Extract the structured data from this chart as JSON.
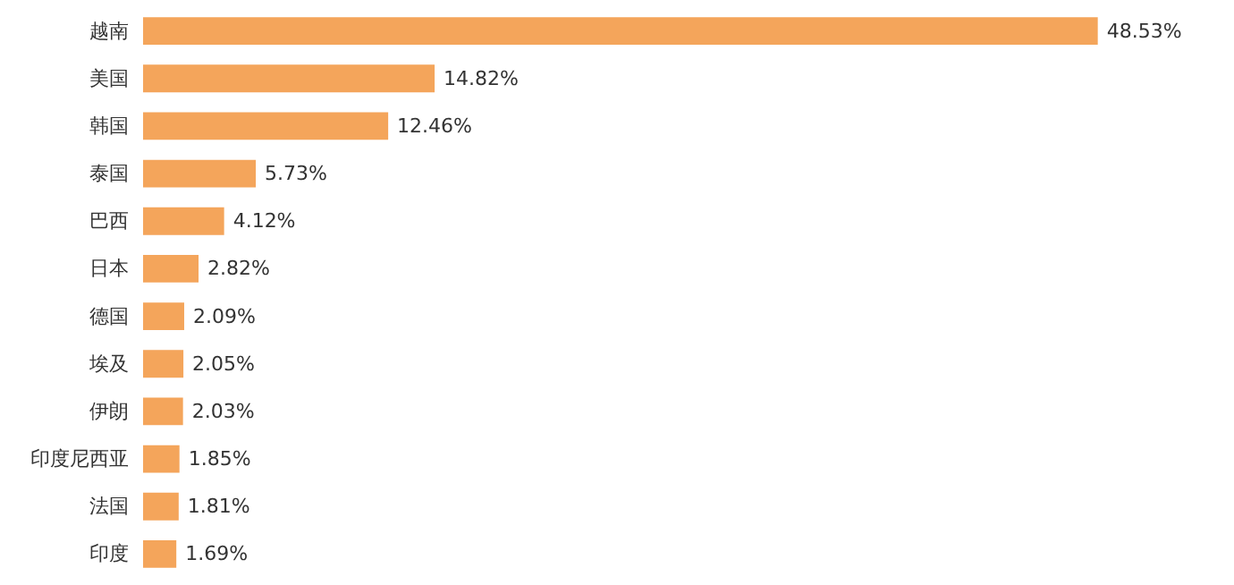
{
  "chart_data": {
    "type": "bar",
    "orientation": "horizontal",
    "categories": [
      "越南",
      "美国",
      "韩国",
      "泰国",
      "巴西",
      "日本",
      "德国",
      "埃及",
      "伊朗",
      "印度尼西亚",
      "法国",
      "印度"
    ],
    "values": [
      48.53,
      14.82,
      12.46,
      5.73,
      4.12,
      2.82,
      2.09,
      2.05,
      2.03,
      1.85,
      1.81,
      1.69
    ],
    "value_labels": [
      "48.53%",
      "14.82%",
      "12.46%",
      "5.73%",
      "4.12%",
      "2.82%",
      "2.09%",
      "2.05%",
      "2.03%",
      "1.85%",
      "1.81%",
      "1.69%"
    ],
    "color": "#f4a55b"
  }
}
